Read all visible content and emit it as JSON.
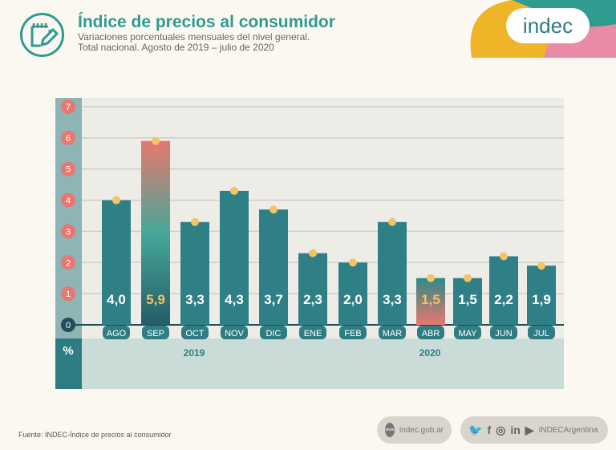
{
  "header": {
    "title": "Índice de precios al consumidor",
    "subtitle1": "Variaciones porcentuales mensuales del nivel general.",
    "subtitle2": "Total nacional. Agosto de 2019 – julio de 2020",
    "brand": "indec"
  },
  "chart_data": {
    "type": "bar",
    "title": "Índice de precios al consumidor",
    "categories": [
      "AGO",
      "SEP",
      "OCT",
      "NOV",
      "DIC",
      "ENE",
      "FEB",
      "MAR",
      "ABR",
      "MAY",
      "JUN",
      "JUL"
    ],
    "values": [
      4.0,
      5.9,
      3.3,
      4.3,
      3.7,
      2.3,
      2.0,
      3.3,
      1.5,
      1.5,
      2.2,
      1.9
    ],
    "labels": [
      "4,0",
      "5,9",
      "3,3",
      "4,3",
      "3,7",
      "2,3",
      "2,0",
      "3,3",
      "1,5",
      "1,5",
      "2,2",
      "1,9"
    ],
    "highlighted": [
      "SEP",
      "ABR"
    ],
    "years": [
      {
        "label": "2019"
      },
      {
        "label": "2020"
      }
    ],
    "ylabel": "%",
    "ylim": [
      0,
      7
    ],
    "yticks": [
      "0",
      "1",
      "2",
      "3",
      "4",
      "5",
      "6",
      "7"
    ],
    "grid": true,
    "colors": {
      "bar": "#2f7f86",
      "highlight_text": "#f3c463",
      "tick_bubble": "#e8776f",
      "point": "#f3c463"
    }
  },
  "footer": {
    "source": "Fuente: INDEC-Índice de precios al consumidor",
    "web": "indec.gob.ar",
    "web_icon": "www",
    "social": "INDECArgentina",
    "social_icons": [
      "twitter-icon",
      "facebook-icon",
      "instagram-icon",
      "linkedin-icon",
      "youtube-icon"
    ]
  }
}
